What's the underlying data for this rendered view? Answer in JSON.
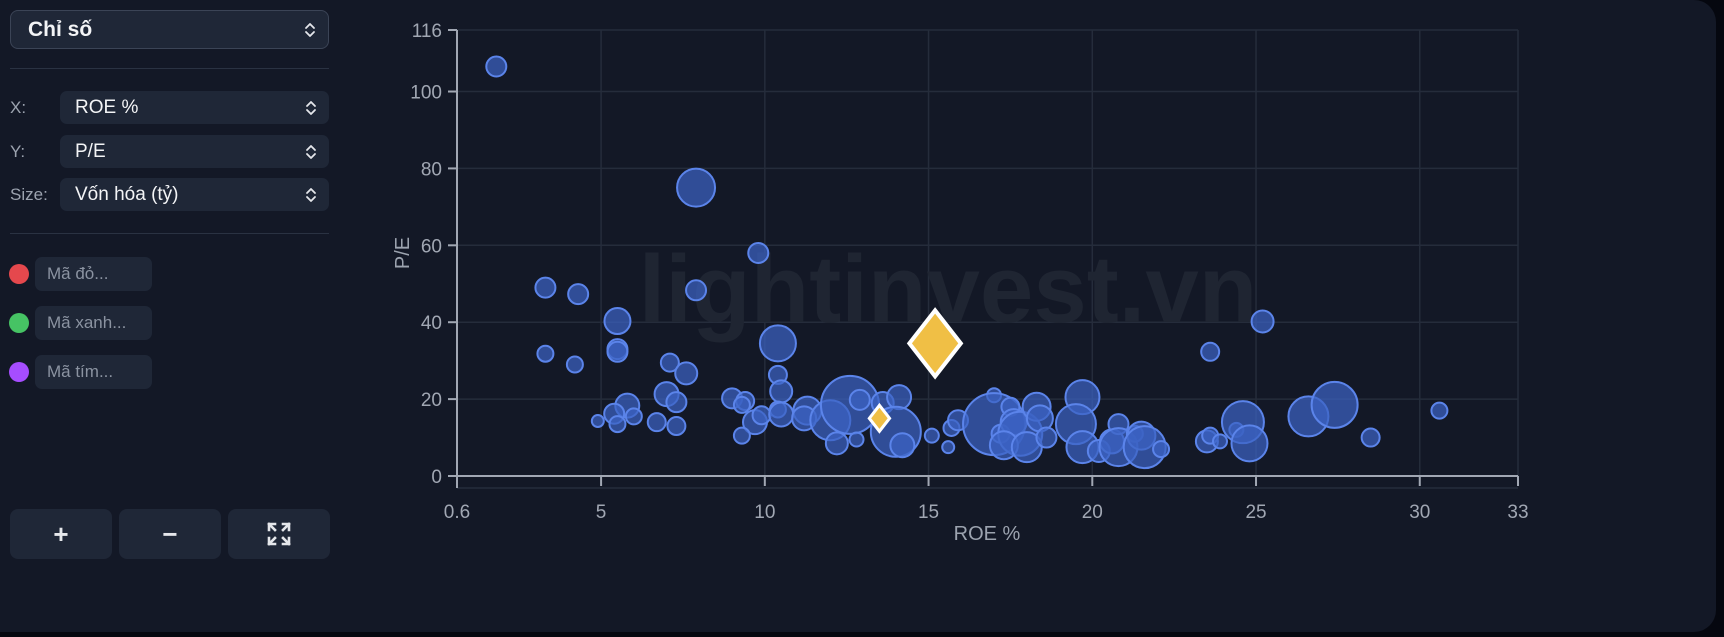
{
  "sidebar": {
    "preset_select": {
      "value": "Chỉ số"
    },
    "x_axis": {
      "label": "X:",
      "value": "ROE %"
    },
    "y_axis": {
      "label": "Y:",
      "value": "P/E"
    },
    "size_axis": {
      "label": "Size:",
      "value": "Vốn hóa (tỷ)"
    },
    "highlights": [
      {
        "color": "#e5484d",
        "placeholder": "Mã đỏ...",
        "value": ""
      },
      {
        "color": "#46c364",
        "placeholder": "Mã xanh...",
        "value": ""
      },
      {
        "color": "#a64dff",
        "placeholder": "Mã tím...",
        "value": ""
      }
    ],
    "controls": {
      "zoom_in_label": "+",
      "zoom_out_label": "−",
      "fullscreen_icon": "expand-arrows-icon"
    }
  },
  "colors": {
    "bubble_fill": "#3b63c4",
    "bubble_stroke": "#5b84ea",
    "highlight_fill": "#f0bf45",
    "highlight_stroke": "#ffffff",
    "axis": "#a1a7b3",
    "grid": "#252c3b",
    "watermark": "#1f2532"
  },
  "chart_data": {
    "type": "scatter",
    "subtype": "bubble",
    "title": "",
    "xlabel": "ROE %",
    "ylabel": "P/E",
    "xlim": [
      0.6,
      33
    ],
    "ylim": [
      0,
      116
    ],
    "x_ticks": [
      "0.6",
      "5",
      "10",
      "15",
      "20",
      "25",
      "30",
      "33"
    ],
    "x_tick_values": [
      0.6,
      5,
      10,
      15,
      20,
      25,
      30,
      33
    ],
    "y_ticks": [
      "0",
      "20",
      "40",
      "60",
      "80",
      "100",
      "116"
    ],
    "y_tick_values": [
      0,
      20,
      40,
      60,
      80,
      100,
      116
    ],
    "grid": true,
    "watermark": "lightinvest.vn",
    "size_legend": "Vốn hóa (tỷ)",
    "series": [
      {
        "name": "stocks",
        "points": [
          {
            "x": 1.8,
            "y": 106.5,
            "r": 10
          },
          {
            "x": 7.9,
            "y": 75.0,
            "r": 19
          },
          {
            "x": 9.8,
            "y": 58.0,
            "r": 10
          },
          {
            "x": 3.3,
            "y": 49.0,
            "r": 10
          },
          {
            "x": 4.3,
            "y": 47.3,
            "r": 10
          },
          {
            "x": 7.9,
            "y": 48.3,
            "r": 10
          },
          {
            "x": 5.5,
            "y": 40.3,
            "r": 13
          },
          {
            "x": 3.3,
            "y": 31.8,
            "r": 8
          },
          {
            "x": 4.2,
            "y": 29.0,
            "r": 8
          },
          {
            "x": 5.5,
            "y": 33.0,
            "r": 10
          },
          {
            "x": 5.5,
            "y": 32.3,
            "r": 10
          },
          {
            "x": 7.1,
            "y": 29.5,
            "r": 9
          },
          {
            "x": 7.6,
            "y": 26.7,
            "r": 11
          },
          {
            "x": 10.4,
            "y": 34.5,
            "r": 18
          },
          {
            "x": 10.4,
            "y": 26.3,
            "r": 9
          },
          {
            "x": 10.5,
            "y": 22.0,
            "r": 11
          },
          {
            "x": 7.0,
            "y": 21.3,
            "r": 12
          },
          {
            "x": 7.3,
            "y": 19.2,
            "r": 10
          },
          {
            "x": 5.8,
            "y": 18.3,
            "r": 12
          },
          {
            "x": 5.4,
            "y": 16.2,
            "r": 10
          },
          {
            "x": 6.0,
            "y": 15.5,
            "r": 8
          },
          {
            "x": 4.9,
            "y": 14.3,
            "r": 6
          },
          {
            "x": 5.5,
            "y": 13.5,
            "r": 8
          },
          {
            "x": 6.7,
            "y": 14.0,
            "r": 9
          },
          {
            "x": 7.3,
            "y": 13.0,
            "r": 9
          },
          {
            "x": 9.0,
            "y": 20.2,
            "r": 10
          },
          {
            "x": 9.4,
            "y": 19.5,
            "r": 9
          },
          {
            "x": 9.3,
            "y": 18.5,
            "r": 8
          },
          {
            "x": 9.7,
            "y": 14.0,
            "r": 12
          },
          {
            "x": 9.9,
            "y": 15.8,
            "r": 9
          },
          {
            "x": 9.3,
            "y": 10.5,
            "r": 8
          },
          {
            "x": 10.4,
            "y": 17.3,
            "r": 8
          },
          {
            "x": 10.5,
            "y": 16.0,
            "r": 12
          },
          {
            "x": 11.3,
            "y": 17.0,
            "r": 14
          },
          {
            "x": 11.2,
            "y": 15.0,
            "r": 12
          },
          {
            "x": 12.0,
            "y": 14.5,
            "r": 20
          },
          {
            "x": 12.6,
            "y": 18.5,
            "r": 29
          },
          {
            "x": 12.9,
            "y": 19.8,
            "r": 10
          },
          {
            "x": 12.2,
            "y": 8.5,
            "r": 11
          },
          {
            "x": 12.8,
            "y": 9.5,
            "r": 7
          },
          {
            "x": 13.6,
            "y": 19.0,
            "r": 11
          },
          {
            "x": 14.1,
            "y": 20.5,
            "r": 12
          },
          {
            "x": 14.0,
            "y": 11.5,
            "r": 25
          },
          {
            "x": 14.2,
            "y": 8.0,
            "r": 12
          },
          {
            "x": 15.1,
            "y": 10.5,
            "r": 7
          },
          {
            "x": 15.6,
            "y": 7.5,
            "r": 6
          },
          {
            "x": 15.7,
            "y": 12.5,
            "r": 8
          },
          {
            "x": 15.9,
            "y": 14.5,
            "r": 10
          },
          {
            "x": 17.0,
            "y": 21.0,
            "r": 7
          },
          {
            "x": 17.0,
            "y": 13.5,
            "r": 31
          },
          {
            "x": 17.2,
            "y": 11.0,
            "r": 9
          },
          {
            "x": 17.5,
            "y": 18.0,
            "r": 9
          },
          {
            "x": 17.6,
            "y": 14.0,
            "r": 13
          },
          {
            "x": 17.8,
            "y": 11.0,
            "r": 22
          },
          {
            "x": 17.3,
            "y": 8.0,
            "r": 14
          },
          {
            "x": 18.0,
            "y": 7.5,
            "r": 15
          },
          {
            "x": 18.3,
            "y": 18.0,
            "r": 14
          },
          {
            "x": 18.4,
            "y": 15.0,
            "r": 13
          },
          {
            "x": 18.6,
            "y": 10.0,
            "r": 10
          },
          {
            "x": 19.7,
            "y": 20.5,
            "r": 17
          },
          {
            "x": 19.5,
            "y": 13.5,
            "r": 20
          },
          {
            "x": 19.7,
            "y": 7.5,
            "r": 16
          },
          {
            "x": 20.2,
            "y": 6.5,
            "r": 11
          },
          {
            "x": 20.6,
            "y": 9.0,
            "r": 12
          },
          {
            "x": 20.8,
            "y": 13.5,
            "r": 10
          },
          {
            "x": 20.8,
            "y": 7.5,
            "r": 19
          },
          {
            "x": 21.3,
            "y": 11.0,
            "r": 8
          },
          {
            "x": 21.5,
            "y": 10.5,
            "r": 14
          },
          {
            "x": 21.6,
            "y": 7.5,
            "r": 21
          },
          {
            "x": 22.1,
            "y": 7.0,
            "r": 8
          },
          {
            "x": 23.6,
            "y": 32.3,
            "r": 9
          },
          {
            "x": 25.2,
            "y": 40.2,
            "r": 11
          },
          {
            "x": 23.5,
            "y": 9.0,
            "r": 11
          },
          {
            "x": 23.6,
            "y": 10.5,
            "r": 8
          },
          {
            "x": 23.9,
            "y": 9.0,
            "r": 7
          },
          {
            "x": 24.4,
            "y": 12.0,
            "r": 7
          },
          {
            "x": 24.6,
            "y": 14.0,
            "r": 21
          },
          {
            "x": 24.8,
            "y": 8.5,
            "r": 18
          },
          {
            "x": 26.6,
            "y": 15.5,
            "r": 20
          },
          {
            "x": 27.4,
            "y": 18.5,
            "r": 23
          },
          {
            "x": 28.5,
            "y": 10.0,
            "r": 9
          },
          {
            "x": 30.6,
            "y": 17.0,
            "r": 8
          }
        ]
      },
      {
        "name": "highlight",
        "marker": "diamond",
        "points": [
          {
            "x": 15.2,
            "y": 34.5,
            "r": 33
          },
          {
            "x": 13.5,
            "y": 15.0,
            "r": 13
          }
        ]
      }
    ]
  }
}
